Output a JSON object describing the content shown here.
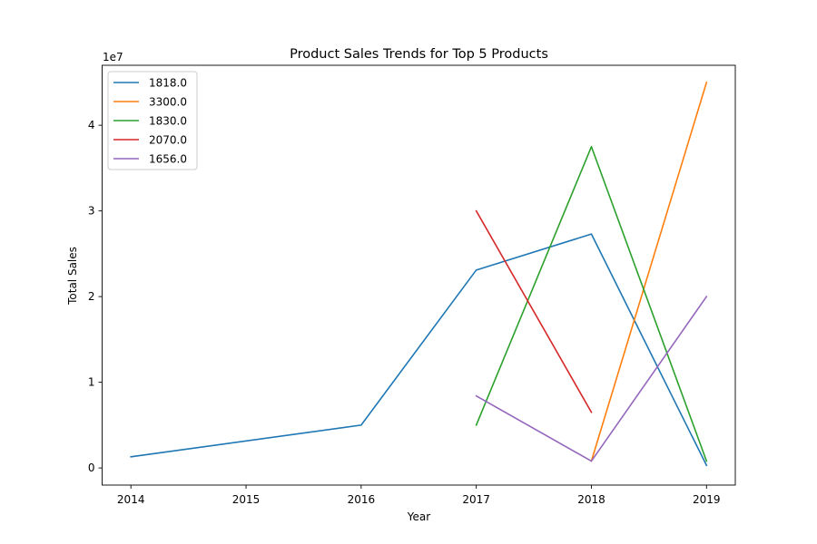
{
  "chart_data": {
    "type": "line",
    "title": "Product Sales Trends for Top 5 Products",
    "xlabel": "Year",
    "ylabel": "Total Sales",
    "y_offset_label": "1e7",
    "xlim": [
      2013.75,
      2019.25
    ],
    "ylim": [
      -2000000,
      47000000
    ],
    "x_ticks": [
      2014,
      2015,
      2016,
      2017,
      2018,
      2019
    ],
    "y_ticks": [
      0,
      10000000,
      20000000,
      30000000,
      40000000
    ],
    "y_tick_labels": [
      "0",
      "1",
      "2",
      "3",
      "4"
    ],
    "grid": false,
    "legend_position": "top-left",
    "series": [
      {
        "name": "1818.0",
        "color": "#1f77b4",
        "points": [
          [
            2014,
            1300000
          ],
          [
            2016,
            5000000
          ],
          [
            2017,
            23100000
          ],
          [
            2018,
            27300000
          ],
          [
            2019,
            300000
          ]
        ]
      },
      {
        "name": "3300.0",
        "color": "#ff7f0e",
        "points": [
          [
            2018,
            800000
          ],
          [
            2019,
            45000000
          ]
        ]
      },
      {
        "name": "1830.0",
        "color": "#2ca02c",
        "points": [
          [
            2017,
            5000000
          ],
          [
            2018,
            37500000
          ],
          [
            2019,
            800000
          ]
        ]
      },
      {
        "name": "2070.0",
        "color": "#d62728",
        "points": [
          [
            2017,
            30000000
          ],
          [
            2018,
            6500000
          ]
        ]
      },
      {
        "name": "1656.0",
        "color": "#9467bd",
        "points": [
          [
            2017,
            8400000
          ],
          [
            2018,
            800000
          ],
          [
            2019,
            20000000
          ]
        ]
      }
    ]
  }
}
